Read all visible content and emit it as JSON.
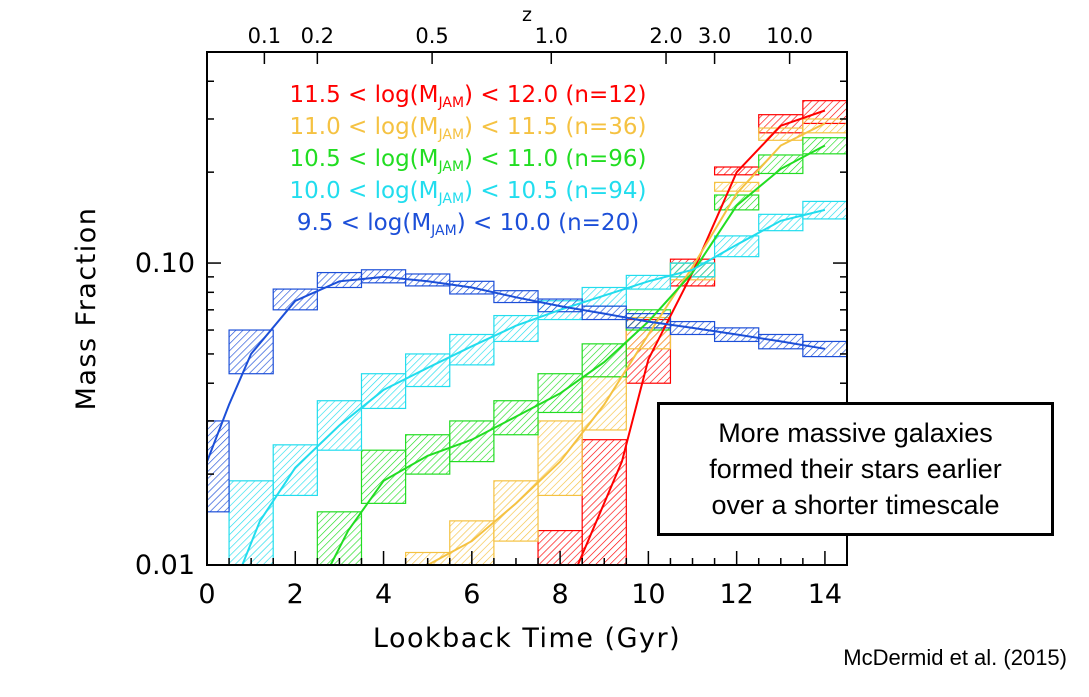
{
  "chart_data": {
    "type": "line",
    "xlabel": "Lookback Time (Gyr)",
    "ylabel": "Mass Fraction",
    "top_axis_label": "z",
    "xlim": [
      0,
      14.5
    ],
    "ylim": [
      0.01,
      0.5
    ],
    "yscale": "log",
    "x_ticks": [
      "0",
      "2",
      "4",
      "6",
      "8",
      "10",
      "12",
      "14"
    ],
    "y_ticks": [
      "0.01",
      "0.10"
    ],
    "top_ticks": [
      {
        "label": "0.1",
        "t": 1.3
      },
      {
        "label": "0.2",
        "t": 2.5
      },
      {
        "label": "0.5",
        "t": 5.1
      },
      {
        "label": "1.0",
        "t": 7.8
      },
      {
        "label": "2.0",
        "t": 10.4
      },
      {
        "label": "3.0",
        "t": 11.5
      },
      {
        "label": "10.0",
        "t": 13.2
      }
    ],
    "series": [
      {
        "name_parts": [
          "11.5 < log(M",
          "JAM",
          ") < 12.0 (n=12)"
        ],
        "color": "#ff0000",
        "x": [
          8.4,
          9.4,
          10.0,
          11.0,
          12.0,
          13.0,
          14.0
        ],
        "y": [
          0.0095,
          0.022,
          0.048,
          0.093,
          0.2,
          0.285,
          0.32
        ],
        "boxes": [
          {
            "x0": 7.5,
            "x1": 8.5,
            "lo": 0.0095,
            "hi": 0.013
          },
          {
            "x0": 8.5,
            "x1": 9.5,
            "lo": 0.0095,
            "hi": 0.026
          },
          {
            "x0": 9.5,
            "x1": 10.5,
            "lo": 0.04,
            "hi": 0.065
          },
          {
            "x0": 10.5,
            "x1": 11.5,
            "lo": 0.084,
            "hi": 0.103
          },
          {
            "x0": 11.5,
            "x1": 12.5,
            "lo": 0.196,
            "hi": 0.208
          },
          {
            "x0": 12.5,
            "x1": 13.5,
            "lo": 0.27,
            "hi": 0.31
          },
          {
            "x0": 13.5,
            "x1": 14.5,
            "lo": 0.29,
            "hi": 0.345
          }
        ]
      },
      {
        "name_parts": [
          "11.0 < log(M",
          "JAM",
          ") < 11.5 (n=36)"
        ],
        "color": "#f5c242",
        "x": [
          5.0,
          6.0,
          7.0,
          8.0,
          9.0,
          10.0,
          11.0,
          12.0,
          13.0,
          14.0
        ],
        "y": [
          0.0095,
          0.012,
          0.016,
          0.022,
          0.034,
          0.058,
          0.097,
          0.17,
          0.245,
          0.29
        ],
        "boxes": [
          {
            "x0": 4.5,
            "x1": 5.5,
            "lo": 0.0095,
            "hi": 0.011
          },
          {
            "x0": 5.5,
            "x1": 6.5,
            "lo": 0.0095,
            "hi": 0.014
          },
          {
            "x0": 6.5,
            "x1": 7.5,
            "lo": 0.012,
            "hi": 0.019
          },
          {
            "x0": 7.5,
            "x1": 8.5,
            "lo": 0.017,
            "hi": 0.03
          },
          {
            "x0": 8.5,
            "x1": 9.5,
            "lo": 0.028,
            "hi": 0.042
          },
          {
            "x0": 9.5,
            "x1": 10.5,
            "lo": 0.052,
            "hi": 0.066
          },
          {
            "x0": 10.5,
            "x1": 11.5,
            "lo": 0.088,
            "hi": 0.1
          },
          {
            "x0": 11.5,
            "x1": 12.5,
            "lo": 0.173,
            "hi": 0.185
          },
          {
            "x0": 12.5,
            "x1": 13.5,
            "lo": 0.255,
            "hi": 0.28
          },
          {
            "x0": 13.5,
            "x1": 14.5,
            "lo": 0.27,
            "hi": 0.3
          }
        ]
      },
      {
        "name_parts": [
          "10.5 < log(M",
          "JAM",
          ") < 11.0 (n=96)"
        ],
        "color": "#22dd22",
        "x": [
          2.8,
          3.2,
          4.0,
          5.0,
          6.0,
          7.0,
          8.0,
          9.0,
          10.0,
          11.0,
          12.0,
          13.0,
          14.0
        ],
        "y": [
          0.0095,
          0.013,
          0.019,
          0.023,
          0.026,
          0.031,
          0.037,
          0.047,
          0.064,
          0.093,
          0.155,
          0.205,
          0.245
        ],
        "boxes": [
          {
            "x0": 2.5,
            "x1": 3.5,
            "lo": 0.0095,
            "hi": 0.015
          },
          {
            "x0": 3.5,
            "x1": 4.5,
            "lo": 0.016,
            "hi": 0.024
          },
          {
            "x0": 4.5,
            "x1": 5.5,
            "lo": 0.02,
            "hi": 0.027
          },
          {
            "x0": 5.5,
            "x1": 6.5,
            "lo": 0.022,
            "hi": 0.03
          },
          {
            "x0": 6.5,
            "x1": 7.5,
            "lo": 0.027,
            "hi": 0.035
          },
          {
            "x0": 7.5,
            "x1": 8.5,
            "lo": 0.032,
            "hi": 0.043
          },
          {
            "x0": 8.5,
            "x1": 9.5,
            "lo": 0.042,
            "hi": 0.054
          },
          {
            "x0": 9.5,
            "x1": 10.5,
            "lo": 0.06,
            "hi": 0.07
          },
          {
            "x0": 10.5,
            "x1": 11.5,
            "lo": 0.09,
            "hi": 0.1
          },
          {
            "x0": 11.5,
            "x1": 12.5,
            "lo": 0.15,
            "hi": 0.168
          },
          {
            "x0": 12.5,
            "x1": 13.5,
            "lo": 0.198,
            "hi": 0.228
          },
          {
            "x0": 13.5,
            "x1": 14.5,
            "lo": 0.23,
            "hi": 0.26
          }
        ]
      },
      {
        "name_parts": [
          "10.0 < log(M",
          "JAM",
          ") < 10.5 (n=94)"
        ],
        "color": "#22ddee",
        "x": [
          0.8,
          1.2,
          2.0,
          3.0,
          4.0,
          5.0,
          6.0,
          7.0,
          8.0,
          9.0,
          10.0,
          11.0,
          12.0,
          13.0,
          14.0
        ],
        "y": [
          0.0095,
          0.014,
          0.021,
          0.029,
          0.038,
          0.045,
          0.053,
          0.062,
          0.07,
          0.078,
          0.087,
          0.095,
          0.115,
          0.138,
          0.15
        ],
        "boxes": [
          {
            "x0": 0.5,
            "x1": 1.5,
            "lo": 0.0095,
            "hi": 0.019
          },
          {
            "x0": 1.5,
            "x1": 2.5,
            "lo": 0.017,
            "hi": 0.025
          },
          {
            "x0": 2.5,
            "x1": 3.5,
            "lo": 0.024,
            "hi": 0.035
          },
          {
            "x0": 3.5,
            "x1": 4.5,
            "lo": 0.033,
            "hi": 0.043
          },
          {
            "x0": 4.5,
            "x1": 5.5,
            "lo": 0.039,
            "hi": 0.05
          },
          {
            "x0": 5.5,
            "x1": 6.5,
            "lo": 0.046,
            "hi": 0.058
          },
          {
            "x0": 6.5,
            "x1": 7.5,
            "lo": 0.055,
            "hi": 0.067
          },
          {
            "x0": 7.5,
            "x1": 8.5,
            "lo": 0.065,
            "hi": 0.075
          },
          {
            "x0": 8.5,
            "x1": 9.5,
            "lo": 0.072,
            "hi": 0.083
          },
          {
            "x0": 9.5,
            "x1": 10.5,
            "lo": 0.082,
            "hi": 0.091
          },
          {
            "x0": 10.5,
            "x1": 11.5,
            "lo": 0.09,
            "hi": 0.1
          },
          {
            "x0": 11.5,
            "x1": 12.5,
            "lo": 0.105,
            "hi": 0.123
          },
          {
            "x0": 12.5,
            "x1": 13.5,
            "lo": 0.128,
            "hi": 0.145
          },
          {
            "x0": 13.5,
            "x1": 14.5,
            "lo": 0.14,
            "hi": 0.16
          }
        ]
      },
      {
        "name_parts": [
          "9.5 < log(M",
          "JAM",
          ") < 10.0 (n=20)"
        ],
        "color": "#1c4fd8",
        "x": [
          0.0,
          0.5,
          1.0,
          2.0,
          3.0,
          4.0,
          5.0,
          6.0,
          7.0,
          8.0,
          9.0,
          10.0,
          11.0,
          12.0,
          13.0,
          14.0
        ],
        "y": [
          0.022,
          0.034,
          0.05,
          0.075,
          0.087,
          0.09,
          0.087,
          0.083,
          0.077,
          0.072,
          0.068,
          0.064,
          0.061,
          0.058,
          0.055,
          0.052
        ],
        "boxes": [
          {
            "x0": 0.0,
            "x1": 0.5,
            "lo": 0.015,
            "hi": 0.03
          },
          {
            "x0": 0.5,
            "x1": 1.5,
            "lo": 0.043,
            "hi": 0.06
          },
          {
            "x0": 1.5,
            "x1": 2.5,
            "lo": 0.07,
            "hi": 0.082
          },
          {
            "x0": 2.5,
            "x1": 3.5,
            "lo": 0.083,
            "hi": 0.093
          },
          {
            "x0": 3.5,
            "x1": 4.5,
            "lo": 0.086,
            "hi": 0.095
          },
          {
            "x0": 4.5,
            "x1": 5.5,
            "lo": 0.084,
            "hi": 0.092
          },
          {
            "x0": 5.5,
            "x1": 6.5,
            "lo": 0.079,
            "hi": 0.087
          },
          {
            "x0": 6.5,
            "x1": 7.5,
            "lo": 0.074,
            "hi": 0.081
          },
          {
            "x0": 7.5,
            "x1": 8.5,
            "lo": 0.069,
            "hi": 0.076
          },
          {
            "x0": 8.5,
            "x1": 9.5,
            "lo": 0.065,
            "hi": 0.072
          },
          {
            "x0": 9.5,
            "x1": 10.5,
            "lo": 0.061,
            "hi": 0.068
          },
          {
            "x0": 10.5,
            "x1": 11.5,
            "lo": 0.058,
            "hi": 0.064
          },
          {
            "x0": 11.5,
            "x1": 12.5,
            "lo": 0.055,
            "hi": 0.061
          },
          {
            "x0": 12.5,
            "x1": 13.5,
            "lo": 0.052,
            "hi": 0.058
          },
          {
            "x0": 13.5,
            "x1": 14.5,
            "lo": 0.049,
            "hi": 0.055
          }
        ]
      }
    ]
  },
  "note": {
    "line1": "More massive galaxies",
    "line2": "formed their stars earlier",
    "line3": "over a shorter timescale"
  },
  "credit": "McDermid et al. (2015)"
}
